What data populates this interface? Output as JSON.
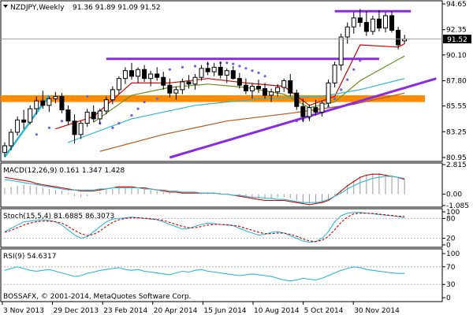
{
  "window": {
    "symbol_line": "NZDJPY,Weekly",
    "ohlc": "91.36 91.89 91.09 91.52",
    "copyright": "BOSSAFX, © 2001-2014, MetaQuotes Software Corp."
  },
  "colors": {
    "bull_candle": "#ffffff",
    "bear_candle": "#000000",
    "ma_red": "#cc0000",
    "ma_olive": "#6b8e23",
    "ma_brown": "#b05a20",
    "ma_cyan": "#2fb8d0",
    "parabolic_sar": "#6666dd",
    "trendline_purple": "#8a2be2",
    "support_orange": "#ff8c00",
    "macd_signal": "#cc0000",
    "macd_line": "#2fb8d0",
    "stoch_main": "#2fb8d0",
    "stoch_signal": "#cc0000",
    "rsi_line": "#2fb8d0"
  },
  "chart_data": {
    "type": "candlestick",
    "instrument": "NZDJPY",
    "timeframe": "Weekly",
    "x_tick_labels": [
      "3 Nov 2013",
      "29 Dec 2013",
      "23 Feb 2014",
      "20 Apr 2014",
      "15 Jun 2014",
      "10 Aug 2014",
      "5 Oct 2014",
      "30 Nov 2014"
    ],
    "price_axis": {
      "ticks": [
        "94.65",
        "92.35",
        "90.10",
        "87.80",
        "85.55",
        "83.25",
        "80.95"
      ],
      "range": [
        80.95,
        94.65
      ],
      "current_price": "91.52",
      "current_value": 91.52
    },
    "candles": [
      {
        "o": 81.4,
        "h": 82.3,
        "l": 81.0,
        "c": 82.0
      },
      {
        "o": 82.0,
        "h": 83.5,
        "l": 81.6,
        "c": 83.2
      },
      {
        "o": 83.2,
        "h": 84.6,
        "l": 82.9,
        "c": 84.3
      },
      {
        "o": 84.3,
        "h": 85.2,
        "l": 83.5,
        "c": 84.1
      },
      {
        "o": 84.1,
        "h": 85.6,
        "l": 83.9,
        "c": 85.3
      },
      {
        "o": 85.3,
        "h": 86.4,
        "l": 84.8,
        "c": 86.0
      },
      {
        "o": 86.0,
        "h": 86.9,
        "l": 85.3,
        "c": 85.6
      },
      {
        "o": 85.6,
        "h": 86.4,
        "l": 85.0,
        "c": 86.2
      },
      {
        "o": 86.2,
        "h": 86.8,
        "l": 85.8,
        "c": 86.4
      },
      {
        "o": 86.4,
        "h": 86.7,
        "l": 84.9,
        "c": 85.2
      },
      {
        "o": 85.2,
        "h": 85.6,
        "l": 83.9,
        "c": 84.2
      },
      {
        "o": 84.2,
        "h": 84.8,
        "l": 82.2,
        "c": 83.0
      },
      {
        "o": 83.0,
        "h": 84.2,
        "l": 82.6,
        "c": 84.0
      },
      {
        "o": 84.0,
        "h": 85.3,
        "l": 83.7,
        "c": 85.0
      },
      {
        "o": 85.0,
        "h": 85.6,
        "l": 84.1,
        "c": 84.4
      },
      {
        "o": 84.4,
        "h": 85.3,
        "l": 83.9,
        "c": 85.1
      },
      {
        "o": 85.1,
        "h": 86.4,
        "l": 84.8,
        "c": 86.1
      },
      {
        "o": 86.1,
        "h": 87.3,
        "l": 85.7,
        "c": 87.0
      },
      {
        "o": 87.0,
        "h": 88.2,
        "l": 86.6,
        "c": 88.0
      },
      {
        "o": 88.0,
        "h": 89.0,
        "l": 87.5,
        "c": 88.7
      },
      {
        "o": 88.7,
        "h": 89.4,
        "l": 87.9,
        "c": 88.2
      },
      {
        "o": 88.2,
        "h": 89.0,
        "l": 87.6,
        "c": 88.8
      },
      {
        "o": 88.8,
        "h": 89.2,
        "l": 87.7,
        "c": 88.0
      },
      {
        "o": 88.0,
        "h": 88.7,
        "l": 87.3,
        "c": 88.4
      },
      {
        "o": 88.4,
        "h": 89.0,
        "l": 87.8,
        "c": 88.1
      },
      {
        "o": 88.1,
        "h": 88.6,
        "l": 87.0,
        "c": 87.4
      },
      {
        "o": 87.4,
        "h": 88.0,
        "l": 86.3,
        "c": 86.7
      },
      {
        "o": 86.7,
        "h": 87.3,
        "l": 86.1,
        "c": 87.0
      },
      {
        "o": 87.0,
        "h": 88.0,
        "l": 86.6,
        "c": 87.7
      },
      {
        "o": 87.7,
        "h": 88.3,
        "l": 87.1,
        "c": 87.5
      },
      {
        "o": 87.5,
        "h": 88.4,
        "l": 87.0,
        "c": 88.1
      },
      {
        "o": 88.1,
        "h": 89.2,
        "l": 87.8,
        "c": 88.9
      },
      {
        "o": 88.9,
        "h": 89.5,
        "l": 88.3,
        "c": 88.6
      },
      {
        "o": 88.6,
        "h": 89.4,
        "l": 88.2,
        "c": 89.0
      },
      {
        "o": 89.0,
        "h": 89.5,
        "l": 88.0,
        "c": 88.3
      },
      {
        "o": 88.3,
        "h": 88.9,
        "l": 87.6,
        "c": 88.7
      },
      {
        "o": 88.7,
        "h": 89.1,
        "l": 87.9,
        "c": 88.0
      },
      {
        "o": 88.0,
        "h": 88.5,
        "l": 87.1,
        "c": 87.4
      },
      {
        "o": 87.4,
        "h": 88.0,
        "l": 86.6,
        "c": 86.9
      },
      {
        "o": 86.9,
        "h": 87.6,
        "l": 86.2,
        "c": 87.3
      },
      {
        "o": 87.3,
        "h": 87.9,
        "l": 86.7,
        "c": 87.1
      },
      {
        "o": 87.1,
        "h": 87.6,
        "l": 86.2,
        "c": 86.5
      },
      {
        "o": 86.5,
        "h": 87.1,
        "l": 85.9,
        "c": 86.8
      },
      {
        "o": 86.8,
        "h": 87.5,
        "l": 86.4,
        "c": 87.2
      },
      {
        "o": 87.2,
        "h": 88.0,
        "l": 86.8,
        "c": 87.8
      },
      {
        "o": 87.8,
        "h": 88.4,
        "l": 86.4,
        "c": 86.7
      },
      {
        "o": 86.7,
        "h": 87.0,
        "l": 85.2,
        "c": 85.5
      },
      {
        "o": 85.5,
        "h": 86.2,
        "l": 84.1,
        "c": 84.6
      },
      {
        "o": 84.6,
        "h": 85.7,
        "l": 84.2,
        "c": 85.4
      },
      {
        "o": 85.4,
        "h": 86.1,
        "l": 84.7,
        "c": 85.0
      },
      {
        "o": 85.0,
        "h": 86.0,
        "l": 84.6,
        "c": 85.8
      },
      {
        "o": 85.8,
        "h": 87.9,
        "l": 85.5,
        "c": 87.6
      },
      {
        "o": 87.6,
        "h": 89.5,
        "l": 87.2,
        "c": 89.2
      },
      {
        "o": 89.2,
        "h": 92.0,
        "l": 88.7,
        "c": 91.7
      },
      {
        "o": 91.7,
        "h": 93.0,
        "l": 91.1,
        "c": 92.6
      },
      {
        "o": 92.6,
        "h": 93.9,
        "l": 92.0,
        "c": 93.4
      },
      {
        "o": 93.4,
        "h": 94.2,
        "l": 92.6,
        "c": 93.0
      },
      {
        "o": 93.0,
        "h": 94.0,
        "l": 91.8,
        "c": 92.2
      },
      {
        "o": 92.2,
        "h": 93.6,
        "l": 91.9,
        "c": 93.3
      },
      {
        "o": 93.3,
        "h": 94.1,
        "l": 92.2,
        "c": 92.5
      },
      {
        "o": 92.5,
        "h": 93.9,
        "l": 92.1,
        "c": 93.6
      },
      {
        "o": 93.6,
        "h": 94.0,
        "l": 92.1,
        "c": 92.3
      },
      {
        "o": 92.3,
        "h": 92.6,
        "l": 90.6,
        "c": 91.0
      },
      {
        "o": 91.36,
        "h": 91.89,
        "l": 91.09,
        "c": 91.52
      }
    ],
    "parabolic_sar": [
      {
        "i": 5,
        "v": 83.0
      },
      {
        "i": 7,
        "v": 83.6
      },
      {
        "i": 9,
        "v": 84.2
      },
      {
        "i": 10,
        "v": 84.7
      },
      {
        "i": 13,
        "v": 86.4
      },
      {
        "i": 15,
        "v": 84.0
      },
      {
        "i": 17,
        "v": 83.6
      },
      {
        "i": 18,
        "v": 84.0
      },
      {
        "i": 20,
        "v": 84.7
      },
      {
        "i": 21,
        "v": 85.3
      },
      {
        "i": 22,
        "v": 85.9
      },
      {
        "i": 24,
        "v": 86.2
      },
      {
        "i": 26,
        "v": 88.8
      },
      {
        "i": 28,
        "v": 89.0
      },
      {
        "i": 30,
        "v": 89.1
      },
      {
        "i": 32,
        "v": 89.3
      },
      {
        "i": 34,
        "v": 89.4
      },
      {
        "i": 35,
        "v": 89.4
      },
      {
        "i": 36,
        "v": 89.3
      },
      {
        "i": 37,
        "v": 89.1
      },
      {
        "i": 38,
        "v": 88.9
      },
      {
        "i": 39,
        "v": 88.7
      },
      {
        "i": 40,
        "v": 88.5
      },
      {
        "i": 41,
        "v": 88.2
      },
      {
        "i": 44,
        "v": 87.6
      },
      {
        "i": 46,
        "v": 84.2
      },
      {
        "i": 47,
        "v": 84.3
      },
      {
        "i": 48,
        "v": 84.5
      },
      {
        "i": 50,
        "v": 85.0
      },
      {
        "i": 51,
        "v": 85.5
      },
      {
        "i": 52,
        "v": 86.2
      },
      {
        "i": 53,
        "v": 87.0
      },
      {
        "i": 54,
        "v": 87.9
      },
      {
        "i": 55,
        "v": 88.8
      },
      {
        "i": 56,
        "v": 89.6
      }
    ],
    "moving_averages": [
      {
        "color_key": "ma_red",
        "points": [
          [
            8,
            83.5
          ],
          [
            14,
            84.6
          ],
          [
            20,
            87.6
          ],
          [
            26,
            87.6
          ],
          [
            32,
            88.0
          ],
          [
            38,
            87.6
          ],
          [
            44,
            87.3
          ],
          [
            48,
            85.6
          ],
          [
            52,
            86.4
          ],
          [
            56,
            91.0
          ],
          [
            62,
            90.8
          ],
          [
            63,
            91.1
          ]
        ]
      },
      {
        "color_key": "ma_olive",
        "points": [
          [
            14,
            84.1
          ],
          [
            20,
            86.5
          ],
          [
            26,
            87.2
          ],
          [
            32,
            87.5
          ],
          [
            38,
            87.2
          ],
          [
            44,
            86.6
          ],
          [
            48,
            85.4
          ],
          [
            52,
            85.9
          ],
          [
            56,
            87.8
          ],
          [
            62,
            89.7
          ],
          [
            63,
            90.0
          ]
        ]
      },
      {
        "color_key": "ma_cyan",
        "points": [
          [
            10,
            82.3
          ],
          [
            20,
            84.4
          ],
          [
            30,
            85.6
          ],
          [
            40,
            86.2
          ],
          [
            50,
            86.4
          ],
          [
            56,
            87.0
          ],
          [
            63,
            88.0
          ]
        ]
      },
      {
        "color_key": "ma_brown",
        "points": [
          [
            15,
            81.5
          ],
          [
            25,
            83.0
          ],
          [
            35,
            84.2
          ],
          [
            45,
            84.9
          ],
          [
            55,
            85.7
          ],
          [
            63,
            86.7
          ]
        ]
      }
    ],
    "trend_lines": [
      {
        "name": "upper-horizontal-1",
        "color_key": "trendline_purple",
        "i1": 16,
        "v1": 89.75,
        "i2": 59,
        "v2": 89.75
      },
      {
        "name": "upper-horizontal-2",
        "color_key": "trendline_purple",
        "i1": 52,
        "v1": 94.0,
        "i2": 64,
        "v2": 94.0
      },
      {
        "name": "rising-support",
        "color_key": "trendline_purple",
        "i1": 26,
        "v1": 80.95,
        "i2": 68,
        "v2": 88.0
      },
      {
        "name": "early-rising",
        "color_key": "ma_cyan",
        "i1": 0,
        "v1": 81.0,
        "i2": 7,
        "v2": 86.5
      }
    ],
    "support_band": {
      "color_key": "support_orange",
      "from": 85.9,
      "to": 86.5
    },
    "macd": {
      "label": "MACD(12,26,9) 0.161 1.347 1.428",
      "ticks": [
        "2.815",
        "0.00",
        "-1.085"
      ],
      "range": [
        -1.085,
        2.815
      ],
      "histogram": [
        0.6,
        0.7,
        0.8,
        0.9,
        0.8,
        0.7,
        0.6,
        0.5,
        0.4,
        0.3,
        0.1,
        -0.2,
        -0.3,
        -0.2,
        0.0,
        0.2,
        0.4,
        0.5,
        0.6,
        0.6,
        0.6,
        0.5,
        0.5,
        0.4,
        0.3,
        0.2,
        0.1,
        0.0,
        0.0,
        0.0,
        0.0,
        0.1,
        0.1,
        0.1,
        0.1,
        0.0,
        0.0,
        -0.1,
        -0.2,
        -0.3,
        -0.4,
        -0.4,
        -0.4,
        -0.3,
        -0.3,
        -0.4,
        -0.6,
        -0.8,
        -0.9,
        -0.9,
        -0.8,
        -0.5,
        -0.1,
        0.4,
        0.9,
        1.3,
        1.7,
        1.9,
        2.0,
        2.0,
        1.9,
        1.8,
        1.6,
        1.4
      ],
      "signal": [
        1.6,
        1.5,
        1.4,
        1.3,
        1.2,
        1.0,
        0.9,
        0.8,
        0.7,
        0.6,
        0.5,
        0.4,
        0.3,
        0.3,
        0.3,
        0.4,
        0.5,
        0.6,
        0.7,
        0.7,
        0.7,
        0.6,
        0.6,
        0.5,
        0.4,
        0.3,
        0.2,
        0.2,
        0.1,
        0.1,
        0.1,
        0.1,
        0.1,
        0.1,
        0.0,
        0.0,
        -0.1,
        -0.2,
        -0.3,
        -0.4,
        -0.5,
        -0.6,
        -0.6,
        -0.6,
        -0.6,
        -0.7,
        -0.8,
        -0.9,
        -1.0,
        -0.9,
        -0.8,
        -0.6,
        -0.2,
        0.3,
        0.8,
        1.2,
        1.6,
        1.8,
        1.9,
        1.9,
        1.8,
        1.7,
        1.6,
        1.4
      ],
      "macd_line": [
        1.4,
        1.3,
        1.2,
        1.1,
        1.0,
        0.9,
        0.8,
        0.7,
        0.6,
        0.5,
        0.4,
        0.4,
        0.4,
        0.4,
        0.4,
        0.5,
        0.5,
        0.6,
        0.6,
        0.6,
        0.6,
        0.6,
        0.5,
        0.5,
        0.4,
        0.4,
        0.3,
        0.3,
        0.2,
        0.2,
        0.2,
        0.1,
        0.1,
        0.1,
        0.0,
        0.0,
        -0.1,
        -0.1,
        -0.2,
        -0.3,
        -0.3,
        -0.4,
        -0.4,
        -0.5,
        -0.5,
        -0.6,
        -0.7,
        -0.8,
        -0.8,
        -0.8,
        -0.7,
        -0.5,
        -0.2,
        0.1,
        0.5,
        0.8,
        1.1,
        1.3,
        1.5,
        1.6,
        1.7,
        1.7,
        1.6,
        1.5
      ]
    },
    "stochastic": {
      "label": "Stoch(15,5,4) 81.6885 86.3073",
      "ticks": [
        "100",
        "80",
        "20",
        "0"
      ],
      "range": [
        0,
        100
      ],
      "main": [
        40,
        50,
        60,
        70,
        72,
        74,
        76,
        74,
        70,
        60,
        45,
        30,
        20,
        25,
        40,
        55,
        70,
        78,
        80,
        82,
        84,
        82,
        80,
        78,
        76,
        70,
        62,
        55,
        48,
        50,
        56,
        62,
        66,
        64,
        62,
        60,
        58,
        50,
        42,
        36,
        30,
        32,
        38,
        40,
        36,
        28,
        20,
        12,
        8,
        10,
        20,
        40,
        70,
        88,
        96,
        98,
        98,
        96,
        94,
        92,
        90,
        88,
        86,
        82
      ],
      "signal": [
        38,
        44,
        52,
        60,
        66,
        70,
        72,
        72,
        70,
        66,
        56,
        44,
        34,
        28,
        32,
        42,
        56,
        68,
        76,
        80,
        82,
        82,
        81,
        79,
        77,
        74,
        68,
        62,
        56,
        52,
        52,
        56,
        60,
        62,
        62,
        61,
        59,
        56,
        50,
        44,
        38,
        34,
        34,
        36,
        36,
        32,
        26,
        18,
        12,
        10,
        14,
        26,
        46,
        68,
        84,
        94,
        96,
        96,
        95,
        93,
        91,
        89,
        87,
        86
      ]
    },
    "rsi": {
      "label": "RSI(9) 54.6317",
      "ticks": [
        "100",
        "70",
        "30",
        "0"
      ],
      "range": [
        0,
        100
      ],
      "values": [
        62,
        66,
        70,
        66,
        62,
        60,
        62,
        64,
        60,
        56,
        52,
        48,
        50,
        55,
        58,
        62,
        64,
        66,
        68,
        64,
        62,
        64,
        60,
        58,
        56,
        54,
        52,
        56,
        60,
        58,
        62,
        64,
        60,
        58,
        56,
        54,
        52,
        50,
        52,
        54,
        52,
        50,
        48,
        44,
        40,
        38,
        40,
        44,
        42,
        40,
        44,
        50,
        56,
        62,
        66,
        70,
        68,
        64,
        62,
        60,
        58,
        56,
        55,
        55
      ]
    }
  }
}
